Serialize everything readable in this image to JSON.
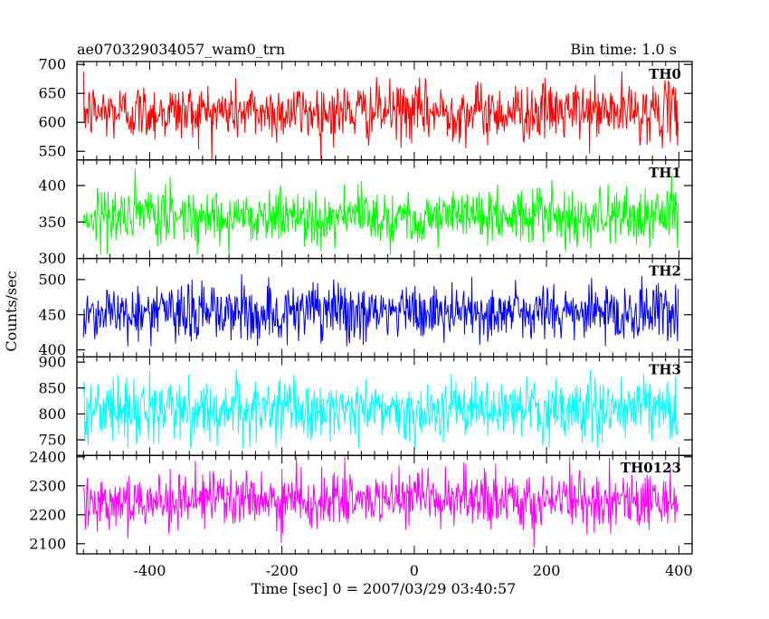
{
  "chart_data": {
    "type": "line",
    "title_left": "ae070329034057_wam0_trn",
    "title_right": "Bin time: 1.0 s",
    "xlabel": "Time [sec] 0 = 2007/03/29 03:40:57",
    "ylabel": "Counts/sec",
    "xlim": [
      -510,
      420
    ],
    "xticks": [
      -400,
      -200,
      0,
      200,
      400
    ],
    "x_start": -500,
    "x_end": 399,
    "bin": 1.0,
    "grid": false,
    "panels": [
      {
        "name": "TH0",
        "color": "#ff0000",
        "ylim": [
          535,
          705
        ],
        "yticks": [
          550,
          600,
          650,
          700
        ],
        "mean": 618,
        "sigma": 25,
        "min": 535,
        "max": 705
      },
      {
        "name": "TH1",
        "color": "#00ff00",
        "ylim": [
          300,
          435
        ],
        "yticks": [
          300,
          350,
          400
        ],
        "mean": 358,
        "sigma": 19,
        "min": 305,
        "max": 425
      },
      {
        "name": "TH2",
        "color": "#0000ff",
        "ylim": [
          390,
          530
        ],
        "yticks": [
          400,
          450,
          500
        ],
        "mean": 453,
        "sigma": 21,
        "min": 405,
        "max": 518
      },
      {
        "name": "TH3",
        "color": "#00ffff",
        "ylim": [
          720,
          910
        ],
        "yticks": [
          750,
          800,
          850,
          900
        ],
        "mean": 808,
        "sigma": 29,
        "min": 735,
        "max": 905
      },
      {
        "name": "TH0123",
        "color": "#ff00ff",
        "ylim": [
          2065,
          2405
        ],
        "yticks": [
          2100,
          2200,
          2300,
          2400
        ],
        "mean": 2250,
        "sigma": 48,
        "min": 2085,
        "max": 2400
      }
    ]
  }
}
